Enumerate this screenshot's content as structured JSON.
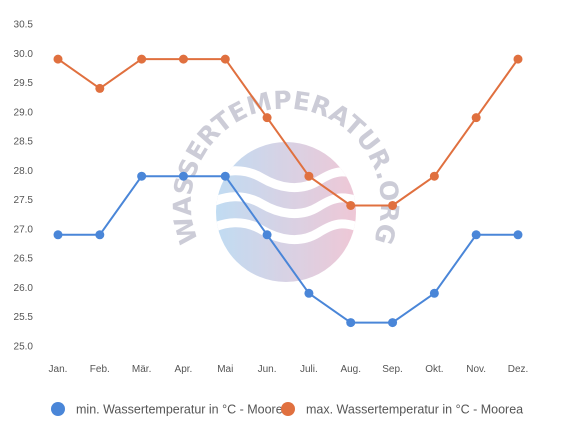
{
  "chart_data": {
    "type": "line",
    "categories": [
      "Jan.",
      "Feb.",
      "Mär.",
      "Apr.",
      "Mai",
      "Jun.",
      "Juli.",
      "Aug.",
      "Sep.",
      "Okt.",
      "Nov.",
      "Dez."
    ],
    "series": [
      {
        "name": "min. Wassertemperatur in °C - Moorea",
        "color": "#4a86d8",
        "values": [
          26.9,
          26.9,
          27.9,
          27.9,
          27.9,
          26.9,
          25.9,
          25.4,
          25.4,
          25.9,
          26.9,
          26.9
        ]
      },
      {
        "name": "max. Wassertemperatur in °C - Moorea",
        "color": "#e0703f",
        "values": [
          29.9,
          29.4,
          29.9,
          29.9,
          29.9,
          28.9,
          27.9,
          27.4,
          27.4,
          27.9,
          28.9,
          29.9
        ]
      }
    ],
    "y_ticks": [
      "30.5",
      "30.0",
      "29.5",
      "29.0",
      "28.5",
      "28.0",
      "27.5",
      "27.0",
      "26.5",
      "26.0",
      "25.5",
      "25.0"
    ],
    "ylim": [
      25.0,
      30.5
    ],
    "grid": false,
    "legend_position": "bottom"
  },
  "watermark": {
    "text": "WASSERTEMPERATUR.ORG",
    "icon": "wave-circle-logo"
  }
}
